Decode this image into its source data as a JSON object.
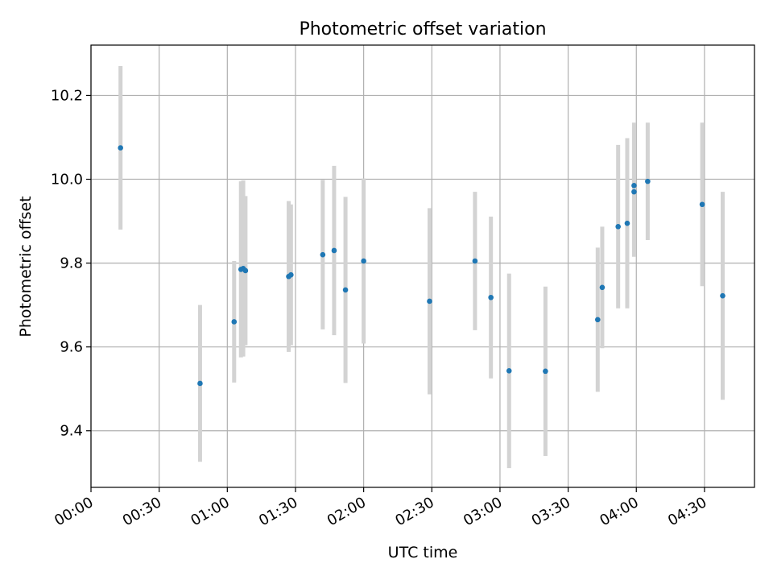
{
  "chart_data": {
    "type": "scatter",
    "title": "Photometric offset variation",
    "xlabel": "UTC time",
    "ylabel": "Photometric offset",
    "x_unit": "UTC time (HH:MM)",
    "xlim": [
      "00:00",
      "04:52"
    ],
    "ylim": [
      9.265,
      10.32
    ],
    "x_ticks": [
      "00:00",
      "00:30",
      "01:00",
      "01:30",
      "02:00",
      "02:30",
      "03:00",
      "03:30",
      "04:00",
      "04:30"
    ],
    "y_ticks": [
      "9.4",
      "9.6",
      "9.8",
      "10.0",
      "10.2"
    ],
    "grid": true,
    "point_color": "#1f77b4",
    "errorbar_color": "#d3d3d3",
    "series": [
      {
        "points": [
          {
            "x": "00:13",
            "y": 10.075,
            "err": 0.195
          },
          {
            "x": "00:48",
            "y": 9.513,
            "err": 0.187
          },
          {
            "x": "01:03",
            "y": 9.66,
            "err": 0.145
          },
          {
            "x": "01:06",
            "y": 9.785,
            "err": 0.21
          },
          {
            "x": "01:07",
            "y": 9.787,
            "err": 0.21
          },
          {
            "x": "01:08",
            "y": 9.782,
            "err": 0.178
          },
          {
            "x": "01:27",
            "y": 9.768,
            "err": 0.18
          },
          {
            "x": "01:28",
            "y": 9.772,
            "err": 0.168
          },
          {
            "x": "01:42",
            "y": 9.82,
            "err": 0.178
          },
          {
            "x": "01:47",
            "y": 9.83,
            "err": 0.202
          },
          {
            "x": "01:52",
            "y": 9.736,
            "err": 0.222
          },
          {
            "x": "02:00",
            "y": 9.805,
            "err": 0.197
          },
          {
            "x": "02:29",
            "y": 9.709,
            "err": 0.222
          },
          {
            "x": "02:49",
            "y": 9.805,
            "err": 0.165
          },
          {
            "x": "02:56",
            "y": 9.718,
            "err": 0.193
          },
          {
            "x": "03:04",
            "y": 9.543,
            "err": 0.232
          },
          {
            "x": "03:20",
            "y": 9.542,
            "err": 0.202
          },
          {
            "x": "03:43",
            "y": 9.665,
            "err": 0.172
          },
          {
            "x": "03:45",
            "y": 9.742,
            "err": 0.145
          },
          {
            "x": "03:52",
            "y": 9.887,
            "err": 0.195
          },
          {
            "x": "03:56",
            "y": 9.895,
            "err": 0.203
          },
          {
            "x": "03:59",
            "y": 9.97,
            "err": 0.155
          },
          {
            "x": "03:59",
            "y": 9.985,
            "err": 0.15
          },
          {
            "x": "04:05",
            "y": 9.995,
            "err": 0.14
          },
          {
            "x": "04:29",
            "y": 9.94,
            "err": 0.195
          },
          {
            "x": "04:38",
            "y": 9.722,
            "err": 0.248
          }
        ]
      }
    ]
  }
}
